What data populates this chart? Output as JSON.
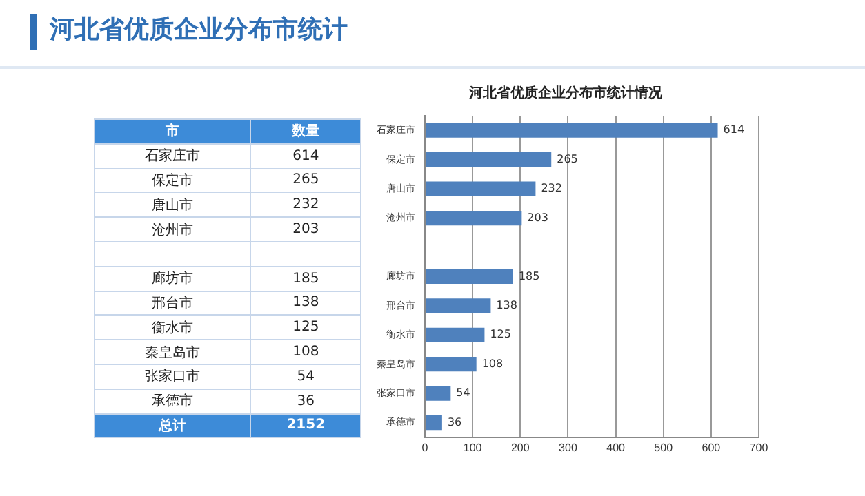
{
  "chart_data": {
    "type": "bar",
    "orientation": "horizontal",
    "title": "河北省优质企业分布市统计",
    "subtitle": "河北省优质企业分布市统计情况",
    "categories": [
      "石家庄市",
      "保定市",
      "唐山市",
      "沧州市",
      null,
      "廊坊市",
      "邢台市",
      "衡水市",
      "秦皇岛市",
      "张家口市",
      "承德市"
    ],
    "values": [
      614,
      265,
      232,
      203,
      null,
      185,
      138,
      125,
      108,
      54,
      36
    ],
    "value_labels": [
      "614",
      "265",
      "232",
      "203",
      null,
      "185",
      "138",
      "125",
      "108",
      "54",
      "36"
    ],
    "color": "#4f81bd",
    "xlim": [
      0,
      700
    ],
    "xticks": [
      0,
      100,
      200,
      300,
      400,
      500,
      600,
      700
    ],
    "grid": "x",
    "data_labels": true,
    "annotations": [
      "市",
      "数量",
      "总计",
      "2152"
    ]
  }
}
